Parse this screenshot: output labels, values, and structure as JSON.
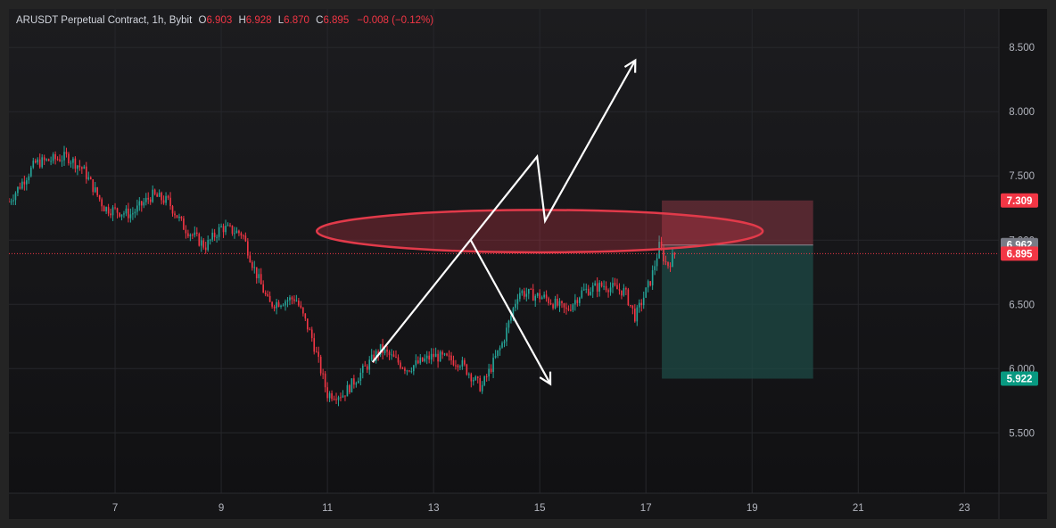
{
  "header": {
    "symbol": "ARUSDT Perpetual Contract, 1h, Bybit",
    "open_label": "O",
    "open": "6.903",
    "high_label": "H",
    "high": "6.928",
    "low_label": "L",
    "low": "6.870",
    "close_label": "C",
    "close": "6.895",
    "change": "−0.008 (−0.12%)"
  },
  "colors": {
    "up": "#26a69a",
    "down": "#f23645",
    "grid": "#26272b",
    "axis_text": "#b2b5be",
    "stop_zone": "#6b2f38",
    "target_zone": "#1e4a46",
    "drawing": "#ffffff",
    "ellipse": "#e23a4a"
  },
  "price_badges": [
    {
      "text": "7.309",
      "value": 7.309,
      "color": "#f23645"
    },
    {
      "text": "6.962",
      "value": 6.962,
      "color": "#787b86"
    },
    {
      "text": "6.895",
      "value": 6.895,
      "color": "#f23645"
    },
    {
      "text": "5.922",
      "value": 5.922,
      "color": "#089981"
    }
  ],
  "chart_data": {
    "type": "candlestick",
    "title": "ARUSDT Perpetual Contract, 1h, Bybit",
    "y_ticks": [
      "5.500",
      "6.000",
      "6.500",
      "7.000",
      "7.500",
      "8.000",
      "8.500"
    ],
    "y_tick_values": [
      5.5,
      6.0,
      6.5,
      7.0,
      7.5,
      8.0,
      8.5
    ],
    "x_ticks": [
      "7",
      "9",
      "11",
      "13",
      "15",
      "17",
      "19",
      "21",
      "23"
    ],
    "x_tick_days": [
      7,
      9,
      11,
      13,
      15,
      17,
      19,
      21,
      23
    ],
    "xlim_days": [
      5.0,
      23.65
    ],
    "ylim": [
      5.03,
      8.8
    ],
    "grid": true,
    "last_price": 6.895,
    "ohlc": {
      "interval_hours": 1,
      "start_day": 5.0,
      "close_path": [
        [
          5.0,
          7.3
        ],
        [
          5.5,
          7.6
        ],
        [
          6.1,
          7.65
        ],
        [
          6.4,
          7.55
        ],
        [
          6.8,
          7.25
        ],
        [
          7.3,
          7.2
        ],
        [
          7.7,
          7.35
        ],
        [
          8.0,
          7.3
        ],
        [
          8.3,
          7.1
        ],
        [
          8.7,
          6.95
        ],
        [
          9.0,
          7.1
        ],
        [
          9.4,
          7.05
        ],
        [
          9.6,
          6.8
        ],
        [
          9.9,
          6.5
        ],
        [
          10.4,
          6.55
        ],
        [
          10.7,
          6.25
        ],
        [
          11.0,
          5.8
        ],
        [
          11.3,
          5.8
        ],
        [
          11.7,
          6.0
        ],
        [
          12.0,
          6.15
        ],
        [
          12.5,
          6.0
        ],
        [
          13.0,
          6.1
        ],
        [
          13.5,
          6.05
        ],
        [
          13.9,
          5.85
        ],
        [
          14.3,
          6.2
        ],
        [
          14.6,
          6.6
        ],
        [
          15.1,
          6.55
        ],
        [
          15.5,
          6.45
        ],
        [
          15.8,
          6.6
        ],
        [
          16.2,
          6.65
        ],
        [
          16.6,
          6.6
        ],
        [
          16.8,
          6.4
        ],
        [
          17.1,
          6.7
        ],
        [
          17.25,
          6.95
        ],
        [
          17.4,
          6.8
        ],
        [
          17.55,
          6.895
        ]
      ]
    },
    "position": {
      "entry": 6.962,
      "stop": 7.309,
      "target": 5.922,
      "start_day": 17.3,
      "end_day": 20.15
    },
    "drawings": {
      "zigzag_up": [
        [
          11.85,
          6.05
        ],
        [
          14.95,
          7.65
        ],
        [
          15.1,
          7.15
        ],
        [
          16.8,
          8.4
        ]
      ],
      "arrow_down": [
        [
          13.7,
          7.0
        ],
        [
          15.2,
          5.88
        ]
      ],
      "ellipse": {
        "center_day": 15.0,
        "center_price": 7.07,
        "rx_days": 4.2,
        "ry_price": 0.165
      }
    }
  }
}
